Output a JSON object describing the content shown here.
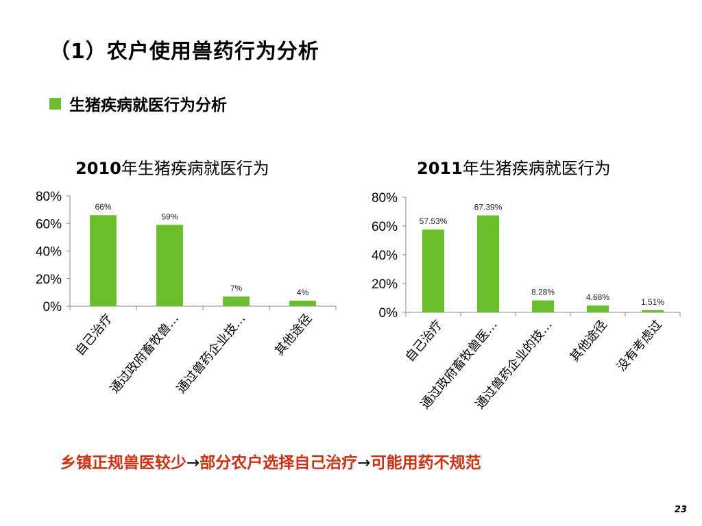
{
  "slide": {
    "title": "（1）农户使用兽药行为分析",
    "subtitle": "生猪疾病就医行为分析",
    "conclusion_parts": [
      "乡镇正规兽医较少",
      "→",
      "部分农户选择自己治疗",
      "→",
      "可能用药不规范"
    ],
    "page_number": "23",
    "colors": {
      "bar": "#6bbf2c",
      "bullet": "#6bbf2c",
      "conclusion": "#d62d0f"
    }
  },
  "chart_data": [
    {
      "type": "bar",
      "title_bold": "2010",
      "title_rest": "年生猪疾病就医行为",
      "categories": [
        "自己治疗",
        "通过政府畜牧兽…",
        "通过兽药企业技…",
        "其他途径"
      ],
      "values": [
        0.66,
        0.59,
        0.07,
        0.04
      ],
      "data_labels": [
        "66%",
        "59%",
        "7%",
        "4%"
      ],
      "yticks": [
        "0%",
        "20%",
        "40%",
        "60%",
        "80%"
      ],
      "ylim": [
        0,
        0.8
      ],
      "grid": false
    },
    {
      "type": "bar",
      "title_bold": "2011",
      "title_rest": "年生猪疾病就医行为",
      "categories": [
        "自己治疗",
        "通过政府畜牧兽医…",
        "通过兽药企业的技…",
        "其他途径",
        "没有考虑过"
      ],
      "values": [
        0.5753,
        0.6739,
        0.0828,
        0.0468,
        0.0151
      ],
      "data_labels": [
        "57.53%",
        "67.39%",
        "8.28%",
        "4.68%",
        "1.51%"
      ],
      "yticks": [
        "0%",
        "20%",
        "40%",
        "60%",
        "80%"
      ],
      "ylim": [
        0,
        0.8
      ],
      "grid": false
    }
  ]
}
